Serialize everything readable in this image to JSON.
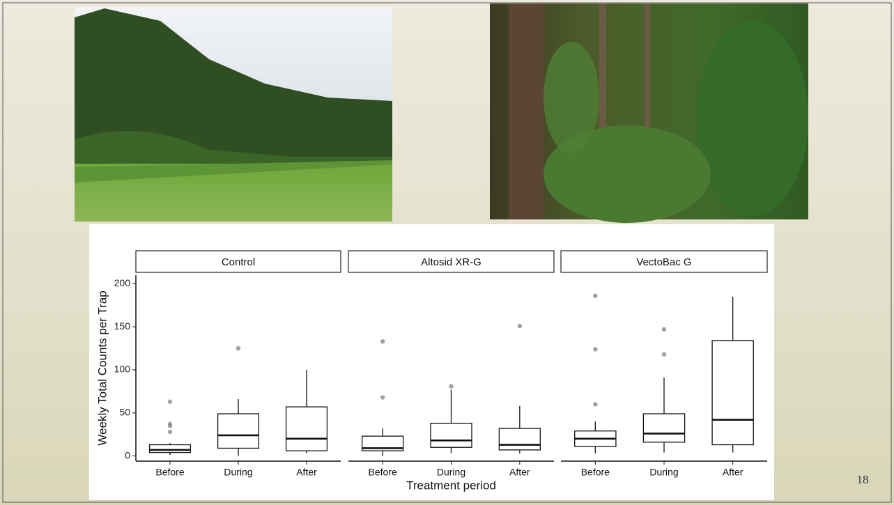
{
  "page_number": "18",
  "chart_data": [
    {
      "type": "box",
      "title": "Control",
      "ylabel": "Weekly Total Counts per Trap",
      "categories": [
        "Before",
        "During",
        "After"
      ],
      "ylim": [
        -6,
        210
      ],
      "yticks": [
        0,
        50,
        100,
        150,
        200
      ],
      "boxes": [
        {
          "min": 1,
          "q1": 4,
          "median": 7,
          "q3": 13,
          "max": 15,
          "outliers": [
            28,
            35,
            37,
            63
          ]
        },
        {
          "min": 0,
          "q1": 9,
          "median": 24,
          "q3": 49,
          "max": 66,
          "outliers": [
            125
          ]
        },
        {
          "min": 3,
          "q1": 6,
          "median": 20,
          "q3": 57,
          "max": 100,
          "outliers": []
        }
      ]
    },
    {
      "type": "box",
      "title": "Altosid XR-G",
      "xlabel": "Treatment period",
      "categories": [
        "Before",
        "During",
        "After"
      ],
      "ylim": [
        -6,
        210
      ],
      "boxes": [
        {
          "min": 0,
          "q1": 6,
          "median": 9,
          "q3": 23,
          "max": 32,
          "outliers": [
            68,
            133
          ]
        },
        {
          "min": 3,
          "q1": 10,
          "median": 18,
          "q3": 38,
          "max": 77,
          "outliers": [
            81
          ]
        },
        {
          "min": 3,
          "q1": 7,
          "median": 13,
          "q3": 32,
          "max": 58,
          "outliers": [
            151
          ]
        }
      ]
    },
    {
      "type": "box",
      "title": "VectoBac G",
      "categories": [
        "Before",
        "During",
        "After"
      ],
      "ylim": [
        -6,
        210
      ],
      "boxes": [
        {
          "min": 3,
          "q1": 11,
          "median": 20,
          "q3": 29,
          "max": 40,
          "outliers": [
            60,
            124,
            186
          ]
        },
        {
          "min": 4,
          "q1": 16,
          "median": 26,
          "q3": 49,
          "max": 91,
          "outliers": [
            118,
            147
          ]
        },
        {
          "min": 4,
          "q1": 13,
          "median": 42,
          "q3": 134,
          "max": 185,
          "outliers": []
        }
      ]
    }
  ]
}
